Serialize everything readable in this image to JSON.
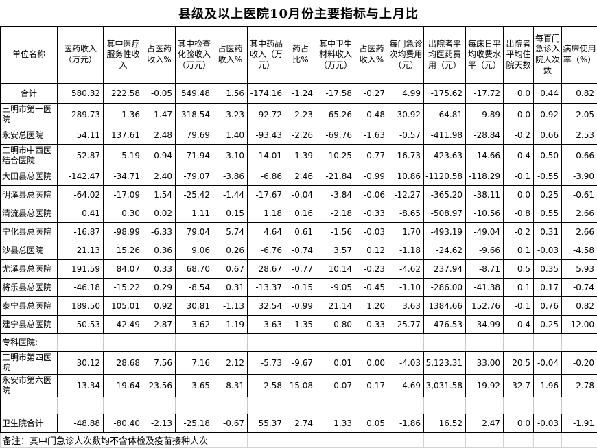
{
  "title": "县级及以上医院10月份主要指标与上月比",
  "note": "备注：其中门急诊人次数均不含体检及疫苗接种人次",
  "colors": {
    "border": "#000000",
    "gridline": "#c8c8c8",
    "background": "#ffffff",
    "text": "#000000"
  },
  "columns": [
    "单位名称",
    "医药收入（万元）",
    "其中医疗服务性收入",
    "占医药收入%",
    "其中检查化验收入（万元）",
    "占医药收入%",
    "其中药品收入（万元）",
    "药占比%",
    "其中卫生材料收入（万元）",
    "占医药收入%",
    "每门急诊次均费用（元）",
    "出院者平均医药费用（元）",
    "每床日平均收费水平（元）",
    "出院者平均住院天数",
    "每百门急诊入院人次数",
    "病床使用率（%）"
  ],
  "rows": [
    {
      "type": "total",
      "name": "合计",
      "values": [
        "580.32",
        "222.58",
        "-0.05",
        "549.48",
        "1.56",
        "-174.16",
        "-1.24",
        "-17.58",
        "-0.27",
        "4.99",
        "-175.62",
        "-17.72",
        "0.0",
        "0.44",
        "0.82"
      ]
    },
    {
      "type": "data",
      "name": "三明市第一医院",
      "values": [
        "289.73",
        "-1.36",
        "-1.47",
        "318.54",
        "3.23",
        "-92.72",
        "-2.23",
        "65.26",
        "0.48",
        "30.92",
        "-64.81",
        "-9.89",
        "0.0",
        "0.92",
        "-2.05"
      ]
    },
    {
      "type": "data",
      "name": "永安总医院",
      "values": [
        "54.11",
        "137.61",
        "2.48",
        "79.69",
        "1.40",
        "-93.43",
        "-2.26",
        "-69.76",
        "-1.63",
        "-0.57",
        "-411.98",
        "-28.84",
        "-0.2",
        "0.66",
        "2.53"
      ]
    },
    {
      "type": "data",
      "name": "三明市中西医结合医院",
      "values": [
        "52.87",
        "5.19",
        "-0.94",
        "71.94",
        "3.10",
        "-14.01",
        "-1.39",
        "-10.25",
        "-0.77",
        "16.73",
        "-423.63",
        "-14.66",
        "-0.4",
        "0.50",
        "-0.66"
      ]
    },
    {
      "type": "data",
      "name": "大田县总医院",
      "values": [
        "-142.47",
        "-34.71",
        "2.40",
        "-79.07",
        "-3.86",
        "-6.86",
        "2.46",
        "-21.84",
        "-0.99",
        "10.86",
        "-1120.58",
        "-118.29",
        "-0.1",
        "-0.55",
        "-3.90"
      ]
    },
    {
      "type": "data",
      "name": "明溪县总医院",
      "values": [
        "-64.02",
        "-17.09",
        "1.54",
        "-25.42",
        "-1.44",
        "-17.67",
        "-0.04",
        "-3.84",
        "-0.06",
        "-12.27",
        "-365.20",
        "-38.11",
        "0.0",
        "0.25",
        "-0.61"
      ]
    },
    {
      "type": "data",
      "name": "清流县总医院",
      "values": [
        "0.41",
        "0.30",
        "0.02",
        "1.11",
        "0.15",
        "1.18",
        "0.16",
        "-2.18",
        "-0.33",
        "-8.65",
        "-508.97",
        "-10.56",
        "-0.8",
        "0.55",
        "2.66"
      ]
    },
    {
      "type": "data",
      "name": "宁化县总医院",
      "values": [
        "-16.87",
        "-98.99",
        "-6.33",
        "79.04",
        "5.74",
        "4.64",
        "0.61",
        "-1.56",
        "-0.03",
        "1.70",
        "-493.19",
        "-49.04",
        "-0.2",
        "0.31",
        "2.66"
      ]
    },
    {
      "type": "data",
      "name": "沙县总医院",
      "values": [
        "21.13",
        "15.26",
        "0.36",
        "9.06",
        "0.26",
        "-6.76",
        "-0.74",
        "3.57",
        "0.12",
        "-1.18",
        "-24.62",
        "-9.66",
        "0.1",
        "-0.03",
        "-4.58"
      ]
    },
    {
      "type": "data",
      "name": "尤溪县总医院",
      "values": [
        "191.59",
        "84.07",
        "0.33",
        "68.70",
        "0.67",
        "28.67",
        "-0.77",
        "10.14",
        "-0.23",
        "-4.62",
        "237.94",
        "-8.71",
        "0.5",
        "0.35",
        "5.93"
      ]
    },
    {
      "type": "data",
      "name": "将乐县总医院",
      "values": [
        "-46.18",
        "-15.22",
        "0.29",
        "-8.54",
        "0.31",
        "-13.37",
        "-0.15",
        "-9.05",
        "-0.45",
        "-1.10",
        "-286.00",
        "-41.38",
        "0.1",
        "0.17",
        "-0.74"
      ]
    },
    {
      "type": "data",
      "name": "泰宁县总医院",
      "values": [
        "189.50",
        "105.01",
        "0.92",
        "30.81",
        "-1.13",
        "32.54",
        "-0.99",
        "21.14",
        "1.20",
        "3.63",
        "1384.66",
        "152.76",
        "-0.1",
        "0.76",
        "0.82"
      ]
    },
    {
      "type": "data",
      "name": "建宁县总医院",
      "values": [
        "50.53",
        "42.49",
        "2.87",
        "3.62",
        "-1.19",
        "3.63",
        "-1.35",
        "0.80",
        "-0.33",
        "-25.77",
        "476.53",
        "34.99",
        "0.4",
        "0.25",
        "12.00"
      ]
    },
    {
      "type": "section",
      "name": "专科医院:"
    },
    {
      "type": "data",
      "name": "三明市第四医院",
      "values": [
        "30.12",
        "28.68",
        "7.56",
        "7.16",
        "2.12",
        "-5.73",
        "-9.67",
        "0.01",
        "0.00",
        "-4.03",
        "5,123.31",
        "33.00",
        "20.5",
        "-0.04",
        "-0.20"
      ]
    },
    {
      "type": "data",
      "name": "永安市第六医院",
      "values": [
        "13.34",
        "19.64",
        "23.56",
        "-3.65",
        "-8.31",
        "-2.58",
        "-15.08",
        "-0.07",
        "-0.17",
        "-4.69",
        "3,031.58",
        "19.92",
        "32.7",
        "-1.96",
        "-2.78"
      ]
    },
    {
      "type": "spacer",
      "name": ""
    },
    {
      "type": "data",
      "name": "卫生院合计",
      "values": [
        "-48.88",
        "-80.40",
        "-2.13",
        "-25.18",
        "-0.67",
        "55.37",
        "2.74",
        "1.33",
        "0.05",
        "-1.86",
        "16.52",
        "2.47",
        "0.0",
        "-0.03",
        "-1.91"
      ]
    },
    {
      "type": "note"
    }
  ]
}
